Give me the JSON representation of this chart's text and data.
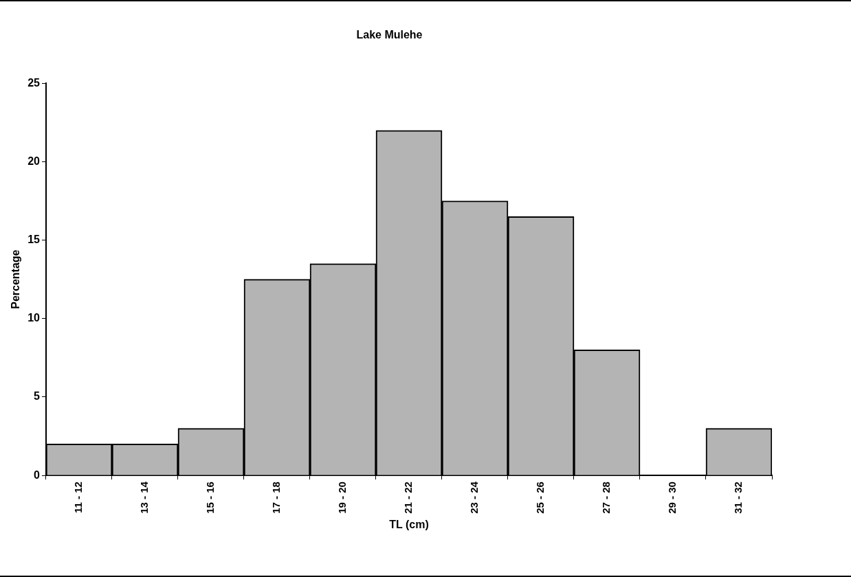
{
  "chart_data": {
    "type": "bar",
    "title": "Lake Mulehe",
    "xlabel": "TL (cm)",
    "ylabel": "Percentage",
    "categories": [
      "11 - 12",
      "13 - 14",
      "15 - 16",
      "17 - 18",
      "19 - 20",
      "21 - 22",
      "23 - 24",
      "25 - 26",
      "27 - 28",
      "29 - 30",
      "31 - 32"
    ],
    "values": [
      2,
      2,
      3,
      12.5,
      13.5,
      22,
      17.5,
      16.5,
      8,
      0,
      3
    ],
    "color": "#b4b4b4",
    "ylim": [
      0,
      25
    ],
    "yticks": [
      0,
      5,
      10,
      15,
      20,
      25
    ],
    "grid": false,
    "legend": false
  }
}
